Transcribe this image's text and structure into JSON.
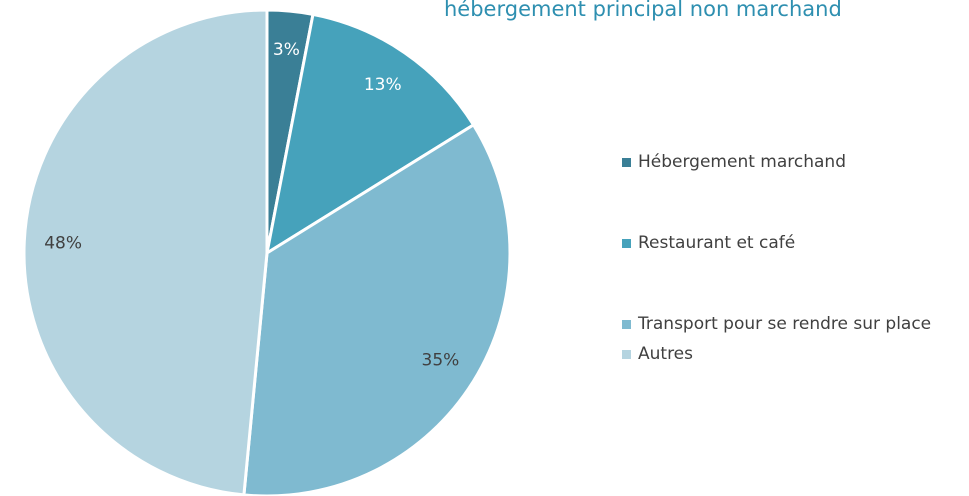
{
  "chart_data": {
    "type": "pie",
    "title": "hébergement principal non marchand",
    "categories": [
      "Hébergement marchand",
      "Restaurant et café",
      "Transport pour se rendre sur place",
      "Autres"
    ],
    "values": [
      3,
      13,
      35,
      48
    ],
    "value_labels": [
      "3%",
      "13%",
      "35%",
      "48%"
    ],
    "colors": [
      "#3a7f96",
      "#46a2bb",
      "#7fbad0",
      "#b5d4e0"
    ],
    "legend": "right"
  }
}
